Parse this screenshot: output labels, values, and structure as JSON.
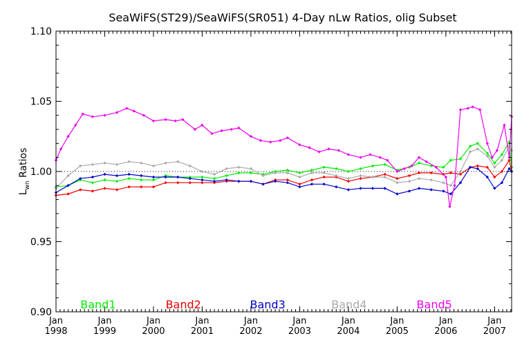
{
  "chart_data": {
    "type": "line",
    "title": "SeaWiFS(ST29)/SeaWiFS(SR051) 4-Day nLw Ratios, olig Subset",
    "ylabel_main": "L",
    "ylabel_sub": "wn",
    "ylabel_rest": " Ratios",
    "xlabel": "",
    "ylim": [
      0.9,
      1.1
    ],
    "xlim": [
      1998.0,
      2007.35
    ],
    "yticks": [
      {
        "v": 0.9,
        "label": "0.90"
      },
      {
        "v": 0.95,
        "label": "0.95"
      },
      {
        "v": 1.0,
        "label": "1.00"
      },
      {
        "v": 1.05,
        "label": "1.05"
      },
      {
        "v": 1.1,
        "label": "1.10"
      }
    ],
    "xticks": [
      {
        "v": 1998,
        "month": "Jan",
        "year": "1998"
      },
      {
        "v": 1999,
        "month": "Jan",
        "year": "1999"
      },
      {
        "v": 2000,
        "month": "Jan",
        "year": "2000"
      },
      {
        "v": 2001,
        "month": "Jan",
        "year": "2001"
      },
      {
        "v": 2002,
        "month": "Jan",
        "year": "2002"
      },
      {
        "v": 2003,
        "month": "Jan",
        "year": "2003"
      },
      {
        "v": 2004,
        "month": "Jan",
        "year": "2004"
      },
      {
        "v": 2005,
        "month": "Jan",
        "year": "2005"
      },
      {
        "v": 2006,
        "month": "Jan",
        "year": "2006"
      },
      {
        "v": 2007,
        "month": "Jan",
        "year": "2007"
      }
    ],
    "reference_line": 1.0,
    "grid": false,
    "legend_position": "bottom",
    "series": [
      {
        "name": "Band1",
        "color": "#00ee00",
        "points": [
          [
            1998.0,
            0.989
          ],
          [
            1998.25,
            0.99
          ],
          [
            1998.5,
            0.994
          ],
          [
            1998.75,
            0.992
          ],
          [
            1999.0,
            0.994
          ],
          [
            1999.25,
            0.993
          ],
          [
            1999.5,
            0.995
          ],
          [
            1999.75,
            0.994
          ],
          [
            2000.0,
            0.994
          ],
          [
            2000.25,
            0.997
          ],
          [
            2000.5,
            0.996
          ],
          [
            2000.75,
            0.996
          ],
          [
            2001.0,
            0.996
          ],
          [
            2001.25,
            0.995
          ],
          [
            2001.5,
            0.997
          ],
          [
            2001.75,
            0.999
          ],
          [
            2002.0,
            0.999
          ],
          [
            2002.25,
            0.998
          ],
          [
            2002.5,
            1.0
          ],
          [
            2002.75,
            1.001
          ],
          [
            2003.0,
            0.999
          ],
          [
            2003.25,
            1.001
          ],
          [
            2003.5,
            1.003
          ],
          [
            2003.75,
            1.002
          ],
          [
            2004.0,
            1.0
          ],
          [
            2004.25,
            1.002
          ],
          [
            2004.5,
            1.004
          ],
          [
            2004.75,
            1.005
          ],
          [
            2005.0,
            1.001
          ],
          [
            2005.25,
            1.003
          ],
          [
            2005.45,
            1.006
          ],
          [
            2005.7,
            1.004
          ],
          [
            2005.95,
            1.003
          ],
          [
            2006.1,
            1.008
          ],
          [
            2006.3,
            1.009
          ],
          [
            2006.5,
            1.018
          ],
          [
            2006.65,
            1.02
          ],
          [
            2006.85,
            1.013
          ],
          [
            2007.0,
            1.006
          ],
          [
            2007.15,
            1.012
          ],
          [
            2007.3,
            1.021
          ],
          [
            2007.35,
            1.003
          ]
        ]
      },
      {
        "name": "Band2",
        "color": "#ee0000",
        "points": [
          [
            1998.0,
            0.983
          ],
          [
            1998.25,
            0.984
          ],
          [
            1998.5,
            0.987
          ],
          [
            1998.75,
            0.986
          ],
          [
            1999.0,
            0.988
          ],
          [
            1999.25,
            0.987
          ],
          [
            1999.5,
            0.989
          ],
          [
            1999.75,
            0.989
          ],
          [
            2000.0,
            0.989
          ],
          [
            2000.25,
            0.992
          ],
          [
            2000.5,
            0.992
          ],
          [
            2000.75,
            0.992
          ],
          [
            2001.0,
            0.992
          ],
          [
            2001.25,
            0.992
          ],
          [
            2001.5,
            0.993
          ],
          [
            2001.75,
            0.993
          ],
          [
            2002.0,
            0.993
          ],
          [
            2002.25,
            0.991
          ],
          [
            2002.5,
            0.994
          ],
          [
            2002.75,
            0.994
          ],
          [
            2003.0,
            0.991
          ],
          [
            2003.25,
            0.994
          ],
          [
            2003.5,
            0.996
          ],
          [
            2003.75,
            0.996
          ],
          [
            2004.0,
            0.993
          ],
          [
            2004.25,
            0.995
          ],
          [
            2004.5,
            0.996
          ],
          [
            2004.75,
            0.998
          ],
          [
            2005.0,
            0.995
          ],
          [
            2005.25,
            0.997
          ],
          [
            2005.45,
            0.999
          ],
          [
            2005.7,
            0.999
          ],
          [
            2005.95,
            0.998
          ],
          [
            2006.1,
            0.999
          ],
          [
            2006.3,
            0.998
          ],
          [
            2006.5,
            1.003
          ],
          [
            2006.65,
            1.004
          ],
          [
            2006.85,
            1.003
          ],
          [
            2007.0,
            0.996
          ],
          [
            2007.15,
            1.0
          ],
          [
            2007.3,
            1.008
          ],
          [
            2007.35,
            1.0
          ]
        ]
      },
      {
        "name": "Band3",
        "color": "#0000cc",
        "points": [
          [
            1998.0,
            0.985
          ],
          [
            1998.25,
            0.99
          ],
          [
            1998.5,
            0.995
          ],
          [
            1998.75,
            0.996
          ],
          [
            1999.0,
            0.998
          ],
          [
            1999.25,
            0.997
          ],
          [
            1999.5,
            0.998
          ],
          [
            1999.75,
            0.997
          ],
          [
            2000.0,
            0.996
          ],
          [
            2000.25,
            0.996
          ],
          [
            2000.5,
            0.996
          ],
          [
            2000.75,
            0.995
          ],
          [
            2001.0,
            0.994
          ],
          [
            2001.25,
            0.993
          ],
          [
            2001.5,
            0.994
          ],
          [
            2001.75,
            0.993
          ],
          [
            2002.0,
            0.993
          ],
          [
            2002.25,
            0.991
          ],
          [
            2002.5,
            0.993
          ],
          [
            2002.75,
            0.992
          ],
          [
            2003.0,
            0.989
          ],
          [
            2003.25,
            0.991
          ],
          [
            2003.5,
            0.991
          ],
          [
            2003.75,
            0.989
          ],
          [
            2004.0,
            0.987
          ],
          [
            2004.25,
            0.988
          ],
          [
            2004.5,
            0.988
          ],
          [
            2004.75,
            0.988
          ],
          [
            2005.0,
            0.984
          ],
          [
            2005.25,
            0.986
          ],
          [
            2005.45,
            0.988
          ],
          [
            2005.7,
            0.987
          ],
          [
            2005.95,
            0.986
          ],
          [
            2006.1,
            0.984
          ],
          [
            2006.3,
            0.992
          ],
          [
            2006.5,
            1.003
          ],
          [
            2006.65,
            1.002
          ],
          [
            2006.85,
            0.996
          ],
          [
            2007.0,
            0.988
          ],
          [
            2007.15,
            0.992
          ],
          [
            2007.3,
            1.002
          ],
          [
            2007.35,
            1.0
          ]
        ]
      },
      {
        "name": "Band4",
        "color": "#aaaaaa",
        "points": [
          [
            1998.0,
            0.988
          ],
          [
            1998.25,
            0.997
          ],
          [
            1998.5,
            1.004
          ],
          [
            1998.75,
            1.005
          ],
          [
            1999.0,
            1.006
          ],
          [
            1999.25,
            1.005
          ],
          [
            1999.5,
            1.007
          ],
          [
            1999.75,
            1.006
          ],
          [
            2000.0,
            1.004
          ],
          [
            2000.25,
            1.006
          ],
          [
            2000.5,
            1.007
          ],
          [
            2000.75,
            1.004
          ],
          [
            2001.0,
            1.0
          ],
          [
            2001.25,
            0.998
          ],
          [
            2001.5,
            1.002
          ],
          [
            2001.75,
            1.003
          ],
          [
            2002.0,
            1.002
          ],
          [
            2002.25,
            0.997
          ],
          [
            2002.5,
            0.999
          ],
          [
            2002.75,
            0.999
          ],
          [
            2003.0,
            0.996
          ],
          [
            2003.25,
            0.999
          ],
          [
            2003.5,
            0.999
          ],
          [
            2003.75,
            0.997
          ],
          [
            2004.0,
            0.995
          ],
          [
            2004.25,
            0.997
          ],
          [
            2004.5,
            0.996
          ],
          [
            2004.75,
            0.996
          ],
          [
            2005.0,
            0.992
          ],
          [
            2005.25,
            0.993
          ],
          [
            2005.45,
            0.995
          ],
          [
            2005.7,
            0.994
          ],
          [
            2005.95,
            0.992
          ],
          [
            2006.1,
            0.99
          ],
          [
            2006.3,
            1.0
          ],
          [
            2006.5,
            1.014
          ],
          [
            2006.65,
            1.016
          ],
          [
            2006.85,
            1.011
          ],
          [
            2007.0,
            1.003
          ],
          [
            2007.15,
            1.008
          ],
          [
            2007.3,
            1.018
          ],
          [
            2007.35,
            1.015
          ]
        ]
      },
      {
        "name": "Band5",
        "color": "#ee00ee",
        "points": [
          [
            1998.0,
            1.008
          ],
          [
            1998.1,
            1.016
          ],
          [
            1998.25,
            1.025
          ],
          [
            1998.4,
            1.033
          ],
          [
            1998.55,
            1.041
          ],
          [
            1998.75,
            1.039
          ],
          [
            1999.0,
            1.04
          ],
          [
            1999.25,
            1.042
          ],
          [
            1999.45,
            1.045
          ],
          [
            1999.6,
            1.043
          ],
          [
            1999.8,
            1.04
          ],
          [
            2000.0,
            1.036
          ],
          [
            2000.25,
            1.037
          ],
          [
            2000.45,
            1.036
          ],
          [
            2000.6,
            1.037
          ],
          [
            2000.85,
            1.03
          ],
          [
            2001.0,
            1.033
          ],
          [
            2001.2,
            1.027
          ],
          [
            2001.4,
            1.029
          ],
          [
            2001.6,
            1.03
          ],
          [
            2001.75,
            1.031
          ],
          [
            2002.0,
            1.025
          ],
          [
            2002.2,
            1.022
          ],
          [
            2002.4,
            1.021
          ],
          [
            2002.6,
            1.022
          ],
          [
            2002.75,
            1.024
          ],
          [
            2003.0,
            1.019
          ],
          [
            2003.2,
            1.017
          ],
          [
            2003.4,
            1.014
          ],
          [
            2003.6,
            1.016
          ],
          [
            2003.8,
            1.015
          ],
          [
            2004.0,
            1.012
          ],
          [
            2004.25,
            1.01
          ],
          [
            2004.45,
            1.012
          ],
          [
            2004.65,
            1.01
          ],
          [
            2004.8,
            1.008
          ],
          [
            2005.0,
            1.0
          ],
          [
            2005.15,
            1.002
          ],
          [
            2005.3,
            1.004
          ],
          [
            2005.45,
            1.01
          ],
          [
            2005.6,
            1.007
          ],
          [
            2005.8,
            1.003
          ],
          [
            2006.0,
            0.996
          ],
          [
            2006.08,
            0.975
          ],
          [
            2006.18,
            0.99
          ],
          [
            2006.3,
            1.044
          ],
          [
            2006.45,
            1.045
          ],
          [
            2006.55,
            1.046
          ],
          [
            2006.7,
            1.044
          ],
          [
            2006.85,
            1.02
          ],
          [
            2006.95,
            1.01
          ],
          [
            2007.05,
            1.015
          ],
          [
            2007.2,
            1.033
          ],
          [
            2007.3,
            1.01
          ],
          [
            2007.35,
            1.039
          ]
        ]
      }
    ]
  }
}
